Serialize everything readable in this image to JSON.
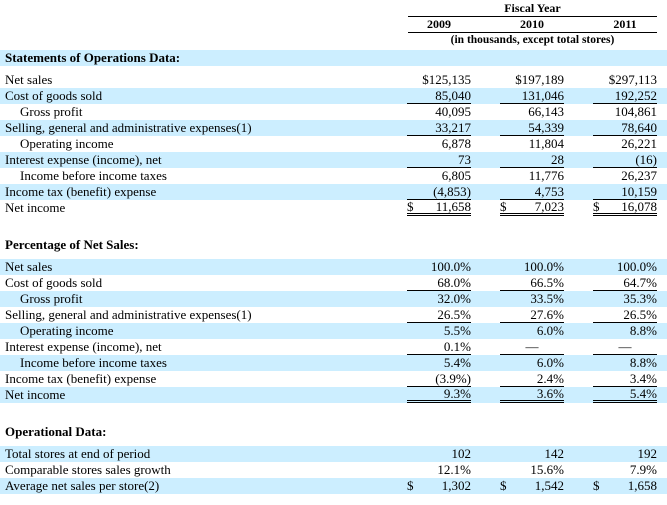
{
  "header": {
    "fiscal_year_label": "Fiscal Year",
    "years": [
      "2009",
      "2010",
      "2011"
    ],
    "note": "(in thousands, except total stores)"
  },
  "colors": {
    "stripe": "#CCEEFF",
    "text": "#000000",
    "rule": "#000000"
  },
  "sections": [
    {
      "title": "Statements of Operations Data:",
      "title_highlight": true,
      "stripe_start": "white",
      "rows": [
        {
          "label": "Net sales",
          "indent": false,
          "rule": "none",
          "values": [
            "$125,135",
            "$197,189",
            "$297,113"
          ]
        },
        {
          "label": "Cost of goods sold",
          "indent": false,
          "rule": "single",
          "values": [
            "85,040",
            "131,046",
            "192,252"
          ]
        },
        {
          "label": "Gross profit",
          "indent": true,
          "rule": "none",
          "values": [
            "40,095",
            "66,143",
            "104,861"
          ]
        },
        {
          "label": "Selling, general and administrative expenses(1)",
          "indent": false,
          "rule": "single",
          "values": [
            "33,217",
            "54,339",
            "78,640"
          ]
        },
        {
          "label": "Operating income",
          "indent": true,
          "rule": "none",
          "values": [
            "6,878",
            "11,804",
            "26,221"
          ]
        },
        {
          "label": "Interest expense (income), net",
          "indent": false,
          "rule": "single",
          "values": [
            "73",
            "28",
            "(16)"
          ]
        },
        {
          "label": "Income before income taxes",
          "indent": true,
          "rule": "none",
          "values": [
            "6,805",
            "11,776",
            "26,237"
          ]
        },
        {
          "label": "Income tax (benefit) expense",
          "indent": false,
          "rule": "single",
          "values": [
            "(4,853)",
            "4,753",
            "10,159"
          ]
        },
        {
          "label": "Net income",
          "indent": false,
          "rule": "double",
          "values": [
            {
              "cur": "$",
              "num": "11,658"
            },
            {
              "cur": "$",
              "num": "7,023"
            },
            {
              "cur": "$",
              "num": "16,078"
            }
          ]
        }
      ]
    },
    {
      "title": "Percentage of Net Sales:",
      "title_highlight": false,
      "stripe_start": "blue",
      "rows": [
        {
          "label": "Net sales",
          "indent": false,
          "rule": "none",
          "values": [
            "100.0%",
            "100.0%",
            "100.0%"
          ]
        },
        {
          "label": "Cost of goods sold",
          "indent": false,
          "rule": "single",
          "values": [
            "68.0%",
            "66.5%",
            "64.7%"
          ]
        },
        {
          "label": "Gross profit",
          "indent": true,
          "rule": "none",
          "values": [
            "32.0%",
            "33.5%",
            "35.3%"
          ]
        },
        {
          "label": "Selling, general and administrative expenses(1)",
          "indent": false,
          "rule": "single",
          "values": [
            "26.5%",
            "27.6%",
            "26.5%"
          ]
        },
        {
          "label": "Operating income",
          "indent": true,
          "rule": "none",
          "values": [
            "5.5%",
            "6.0%",
            "8.8%"
          ]
        },
        {
          "label": "Interest expense (income), net",
          "indent": false,
          "rule": "single",
          "values": [
            "0.1%",
            "—",
            "—"
          ]
        },
        {
          "label": "Income before income taxes",
          "indent": true,
          "rule": "none",
          "values": [
            "5.4%",
            "6.0%",
            "8.8%"
          ]
        },
        {
          "label": "Income tax (benefit) expense",
          "indent": false,
          "rule": "single",
          "values": [
            "(3.9%)",
            "2.4%",
            "3.4%"
          ]
        },
        {
          "label": "Net income",
          "indent": false,
          "rule": "double",
          "values": [
            "9.3%",
            "3.6%",
            "5.4%"
          ]
        }
      ]
    },
    {
      "title": "Operational Data:",
      "title_highlight": false,
      "stripe_start": "blue",
      "rows": [
        {
          "label": "Total stores at end of period",
          "indent": false,
          "rule": "none",
          "values": [
            "102",
            "142",
            "192"
          ]
        },
        {
          "label": "Comparable stores sales growth",
          "indent": false,
          "rule": "none",
          "values": [
            "12.1%",
            "15.6%",
            "7.9%"
          ]
        },
        {
          "label": "Average net sales per store(2)",
          "indent": false,
          "rule": "none",
          "values": [
            {
              "cur": "$",
              "num": "1,302"
            },
            {
              "cur": "$",
              "num": "1,542"
            },
            {
              "cur": "$",
              "num": "1,658"
            }
          ]
        }
      ]
    }
  ]
}
